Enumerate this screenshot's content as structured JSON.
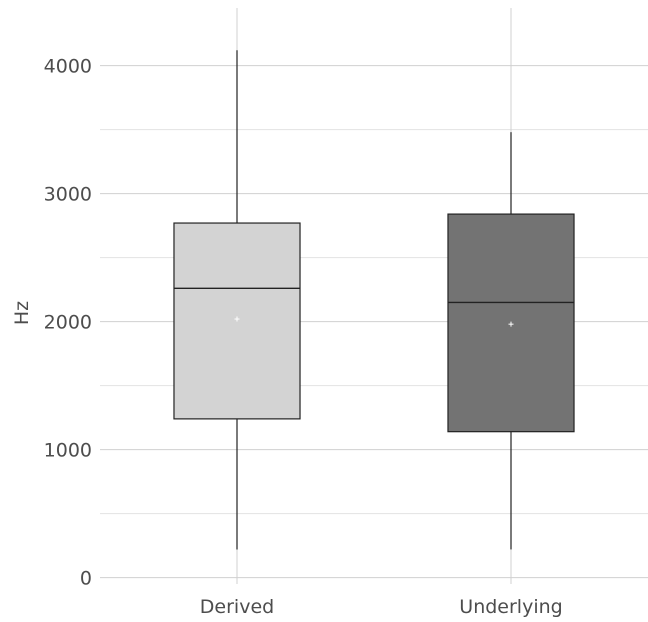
{
  "chart_data": {
    "type": "box",
    "title": "",
    "xlabel": "",
    "ylabel": "Hz",
    "ylim": [
      -50,
      4450
    ],
    "yticks": [
      0,
      1000,
      2000,
      3000,
      4000
    ],
    "yticks_minor": [
      500,
      1500,
      2500,
      3500
    ],
    "grid": true,
    "legend": "none",
    "categories": [
      "Derived",
      "Underlying"
    ],
    "series": [
      {
        "category": "Derived",
        "whisker_low": 220,
        "q1": 1240,
        "median": 2260,
        "q3": 2770,
        "whisker_high": 4120,
        "mean": 2020,
        "fill": "#d3d3d3"
      },
      {
        "category": "Underlying",
        "whisker_low": 220,
        "q1": 1140,
        "median": 2150,
        "q3": 2840,
        "whisker_high": 3480,
        "mean": 1980,
        "fill": "#737373"
      }
    ]
  }
}
